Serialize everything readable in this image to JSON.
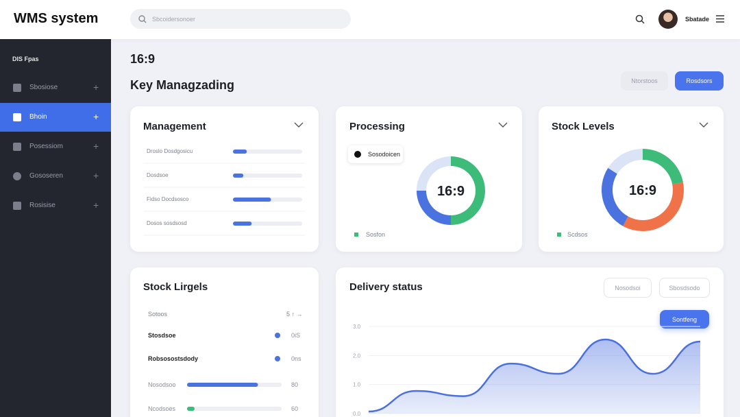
{
  "header": {
    "title": "WMS system",
    "search_placeholder": "Sbcoidersonoer",
    "user_name": "Sbatade"
  },
  "sidebar": {
    "section": "DIS Fpas",
    "items": [
      {
        "label": "Sbosiose",
        "active": false
      },
      {
        "label": "Bhoin",
        "active": true
      },
      {
        "label": "Posessiom",
        "active": false
      },
      {
        "label": "Gososeren",
        "active": false
      },
      {
        "label": "Rosisise",
        "active": false
      }
    ]
  },
  "page": {
    "ratio": "16:9",
    "title": "Key Managzading",
    "buttons": [
      "Ntorstoos",
      "Rosdsors"
    ]
  },
  "management": {
    "title": "Management",
    "rows": [
      {
        "label": "Droslo Dosdgosicu",
        "progress": 20
      },
      {
        "label": "Dosdsoe",
        "progress": 15
      },
      {
        "label": "Fidso Docdsosco",
        "progress": 55
      },
      {
        "label": "Dosos sosdsosd",
        "progress": 27
      }
    ]
  },
  "processing": {
    "title": "Processing",
    "badge": "Sosodoicen",
    "center": "16:9",
    "legend": "Sosfon",
    "segments": [
      {
        "value": 50,
        "color": "#3dbb78"
      },
      {
        "value": 25,
        "color": "#4a73e0"
      },
      {
        "value": 25,
        "color": "#dbe3f7"
      }
    ]
  },
  "stock": {
    "title": "Stock Levels",
    "center": "16:9",
    "legend": "Scdsos",
    "segments": [
      {
        "value": 22,
        "color": "#3dbb78"
      },
      {
        "value": 36,
        "color": "#f07248"
      },
      {
        "value": 26,
        "color": "#4a73e0"
      },
      {
        "value": 16,
        "color": "#dbe3f7"
      }
    ]
  },
  "checklist": {
    "title": "Stock Lirgels",
    "header": [
      "Sotoos",
      "5 ↑ →"
    ],
    "rows": [
      {
        "label": "Stosdsoe",
        "value": "0iS"
      },
      {
        "label": "Robsosostsdody",
        "value": "0ns"
      },
      {
        "label": "Nosodsoo",
        "value": "80",
        "progress": 75
      },
      {
        "label": "Ncodsoes",
        "value": "60",
        "progress": 8
      }
    ]
  },
  "delivery": {
    "title": "Delivery status",
    "buttons": [
      "Nosodsoi",
      "Sbosdsodo"
    ],
    "action": "Sontfeng",
    "chart": {
      "type": "area",
      "x": [
        0,
        1,
        2,
        3,
        4,
        5,
        6,
        7
      ],
      "values": [
        0.07,
        0.78,
        0.6,
        1.72,
        1.37,
        2.55,
        1.37,
        2.48
      ],
      "xlim": [
        0,
        7
      ],
      "ylim": [
        0,
        3
      ],
      "yticks": [
        {
          "value": 3,
          "label": "3.0"
        },
        {
          "value": 2,
          "label": "2.0"
        },
        {
          "value": 1,
          "label": "1.0"
        },
        {
          "value": 0,
          "label": "0.0"
        }
      ],
      "color": "#4a6fe0"
    }
  }
}
